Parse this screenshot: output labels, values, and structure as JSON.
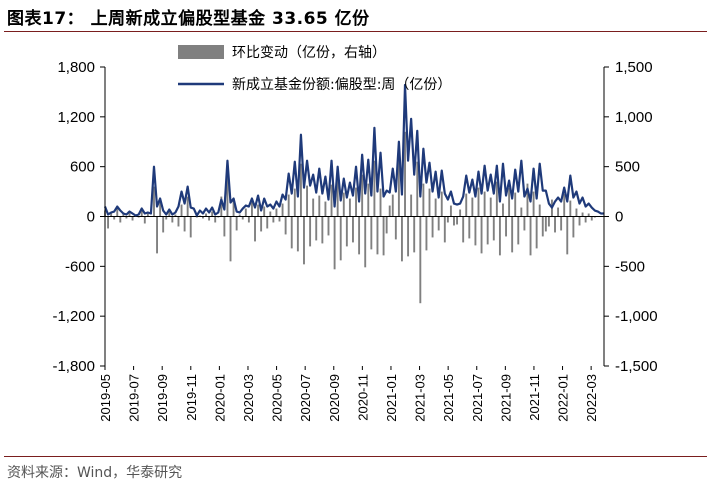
{
  "header": {
    "title": "图表17： 上周新成立偏股型基金 33.65 亿份"
  },
  "footer": {
    "source": "资料来源：Wind，华泰研究"
  },
  "chart_data": {
    "type": "bar+line",
    "title": "上周新成立偏股型基金 33.65 亿份",
    "legend_placement": "top-center",
    "left_axis": {
      "ylim": [
        -1800,
        1800
      ],
      "ticks": [
        "-1,800",
        "-1,200",
        "-600",
        "0",
        "600",
        "1,200",
        "1,800"
      ],
      "tick_values": [
        -1800,
        -1200,
        -600,
        0,
        600,
        1200,
        1800
      ]
    },
    "right_axis": {
      "ylim": [
        -1500,
        1500
      ],
      "ticks": [
        "-1,500",
        "-1,000",
        "-500",
        "0",
        "500",
        "1,000",
        "1,500"
      ],
      "tick_values": [
        -1500,
        -1000,
        -500,
        0,
        500,
        1000,
        1500
      ]
    },
    "x_ticks": [
      "2019-05",
      "2019-07",
      "2019-09",
      "2019-11",
      "2020-01",
      "2020-03",
      "2020-05",
      "2020-07",
      "2020-09",
      "2020-11",
      "2021-01",
      "2021-03",
      "2021-05",
      "2021-07",
      "2021-09",
      "2021-11",
      "2022-01",
      "2022-03"
    ],
    "series": [
      {
        "name": "环比变动（亿份，右轴）",
        "type": "bar",
        "axis": "right",
        "color": "#808080",
        "values": [
          60,
          -120,
          40,
          -30,
          90,
          -60,
          30,
          -20,
          50,
          -40,
          20,
          -10,
          80,
          -70,
          40,
          0,
          300,
          -370,
          180,
          -160,
          -30,
          60,
          -60,
          20,
          -100,
          120,
          -150,
          200,
          -210,
          0,
          -10,
          10,
          -20,
          30,
          -40,
          50,
          -60,
          -10,
          200,
          -200,
          500,
          -450,
          180,
          -140,
          20,
          -30,
          80,
          -60,
          150,
          -250,
          120,
          -150,
          100,
          -120,
          50,
          -60,
          80,
          -50,
          130,
          -180,
          220,
          -320,
          280,
          -350,
          530,
          -480,
          310,
          -300,
          180,
          -240,
          210,
          -270,
          150,
          -190,
          320,
          -530,
          400,
          -440,
          240,
          -300,
          180,
          -260,
          290,
          -380,
          420,
          -510,
          330,
          -330,
          560,
          -380,
          280,
          -390,
          -170,
          110,
          220,
          -230,
          570,
          -450,
          850,
          -400,
          220,
          -360,
          550,
          -870,
          330,
          -340,
          280,
          -210,
          180,
          -140,
          250,
          -260,
          -60,
          110,
          -90,
          -80,
          70,
          -260,
          230,
          -220,
          190,
          -290,
          290,
          -370,
          250,
          -280,
          190,
          -240,
          350,
          -390,
          130,
          -200,
          290,
          -360,
          240,
          -280,
          90,
          -140,
          330,
          -390,
          250,
          -320,
          120,
          -200,
          -150,
          -100,
          170,
          -160,
          90,
          -140,
          230,
          -380,
          160,
          -210,
          80,
          -90,
          40,
          -60,
          30,
          -40,
          -10,
          0
        ]
      },
      {
        "name": "新成立基金份额:偏股型:周（亿份）",
        "type": "line",
        "axis": "right",
        "color": "#1f3a7a",
        "values": [
          100,
          20,
          40,
          50,
          100,
          60,
          30,
          20,
          50,
          30,
          10,
          20,
          80,
          30,
          40,
          30,
          500,
          100,
          180,
          60,
          20,
          70,
          20,
          40,
          100,
          250,
          130,
          300,
          90,
          80,
          10,
          60,
          30,
          80,
          40,
          90,
          20,
          40,
          170,
          70,
          560,
          140,
          180,
          50,
          40,
          80,
          110,
          100,
          180,
          90,
          210,
          60,
          180,
          100,
          120,
          80,
          150,
          100,
          220,
          170,
          430,
          230,
          550,
          200,
          820,
          290,
          560,
          310,
          420,
          240,
          480,
          230,
          400,
          170,
          560,
          100,
          500,
          160,
          380,
          190,
          340,
          210,
          500,
          150,
          620,
          230,
          570,
          210,
          890,
          250,
          640,
          200,
          260,
          240,
          480,
          250,
          750,
          220,
          1320,
          560,
          980,
          420,
          860,
          200,
          680,
          340,
          540,
          250,
          450,
          190,
          460,
          230,
          170,
          250,
          130,
          120,
          130,
          200,
          410,
          240,
          370,
          200,
          450,
          230,
          510,
          260,
          420,
          230,
          510,
          150,
          530,
          210,
          360,
          180,
          470,
          250,
          560,
          200,
          280,
          150,
          480,
          180,
          530,
          260,
          260,
          130,
          90,
          150,
          190,
          150,
          290,
          150,
          410,
          190,
          250,
          130,
          190,
          100,
          130,
          90,
          60,
          50,
          30,
          30
        ]
      }
    ]
  }
}
